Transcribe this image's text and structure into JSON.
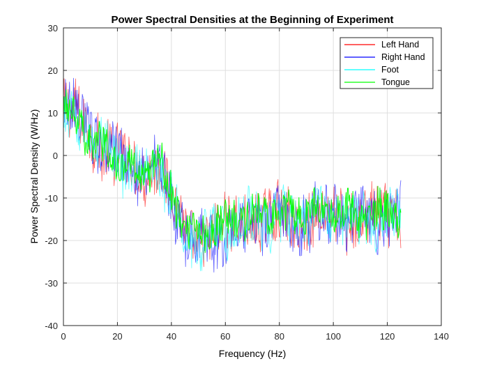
{
  "chart_data": {
    "type": "line",
    "title": "Power Spectral Densities at the Beginning of Experiment",
    "xlabel": "Frequency (Hz)",
    "ylabel": "Power Spectral Density (W/Hz)",
    "xlim": [
      0,
      140
    ],
    "ylim": [
      -40,
      30
    ],
    "xticks": [
      0,
      20,
      40,
      60,
      80,
      100,
      120,
      140
    ],
    "yticks": [
      -40,
      -30,
      -20,
      -10,
      0,
      10,
      20,
      30
    ],
    "grid": true,
    "legend_position": "top-right",
    "series": [
      {
        "name": "Left Hand",
        "color": "#ff0000",
        "approx_trend": {
          "x": [
            0,
            5,
            10,
            20,
            30,
            35,
            38,
            45,
            50,
            60,
            70,
            80,
            90,
            100,
            110,
            125
          ],
          "y": [
            11,
            9,
            5,
            0,
            -4,
            -1,
            -6,
            -18,
            -20,
            -17,
            -15,
            -15,
            -15,
            -14,
            -15,
            -14
          ]
        },
        "noise_amplitude": 8
      },
      {
        "name": "Right Hand",
        "color": "#0000ff",
        "approx_trend": {
          "x": [
            0,
            5,
            10,
            20,
            30,
            35,
            38,
            45,
            50,
            60,
            70,
            80,
            90,
            100,
            110,
            125
          ],
          "y": [
            12,
            9,
            6,
            -1,
            -5,
            -2,
            -7,
            -19,
            -21,
            -18,
            -16,
            -15,
            -15,
            -14,
            -15,
            -14
          ]
        },
        "noise_amplitude": 8
      },
      {
        "name": "Foot",
        "color": "#00ffff",
        "approx_trend": {
          "x": [
            0,
            5,
            10,
            20,
            30,
            35,
            38,
            45,
            50,
            60,
            70,
            80,
            90,
            100,
            110,
            125
          ],
          "y": [
            10,
            8,
            5,
            -1,
            -5,
            -2,
            -7,
            -18,
            -20,
            -17,
            -15,
            -15,
            -15,
            -14,
            -15,
            -14
          ]
        },
        "noise_amplitude": 7
      },
      {
        "name": "Tongue",
        "color": "#00ff00",
        "approx_trend": {
          "x": [
            0,
            5,
            10,
            20,
            30,
            35,
            38,
            45,
            50,
            60,
            70,
            80,
            90,
            100,
            110,
            125
          ],
          "y": [
            11,
            9,
            5,
            -1,
            -4,
            -1,
            -6,
            -17,
            -19,
            -16,
            -14,
            -14,
            -14,
            -13,
            -14,
            -13
          ]
        },
        "noise_amplitude": 5
      }
    ]
  }
}
